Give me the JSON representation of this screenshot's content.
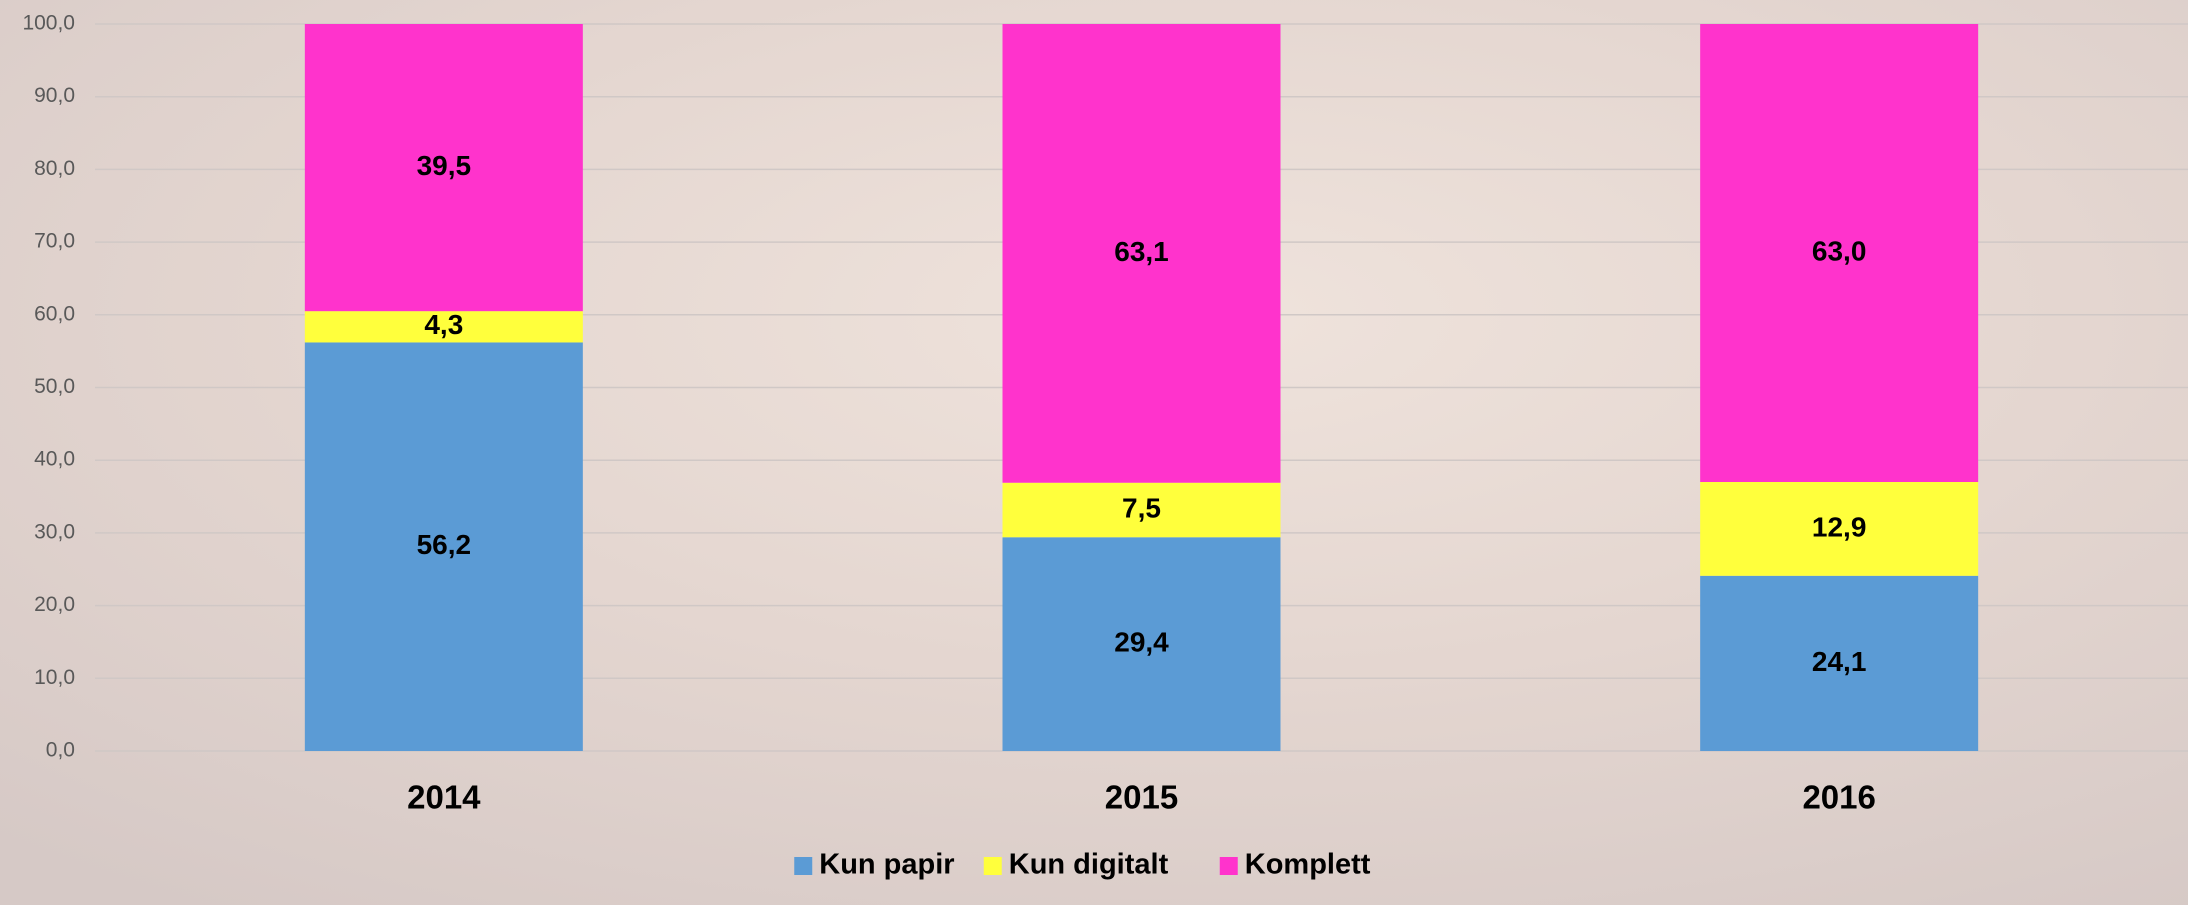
{
  "chart_data": {
    "type": "stacked-bar",
    "categories": [
      "2014",
      "2015",
      "2016"
    ],
    "series": [
      {
        "name": "Kun papir",
        "color": "#5b9bd5",
        "values": [
          56.2,
          29.4,
          24.1
        ],
        "value_labels": [
          "56,2",
          "29,4",
          "24,1"
        ]
      },
      {
        "name": "Kun digitalt",
        "color": "#ffff3c",
        "values": [
          4.3,
          7.5,
          12.9
        ],
        "value_labels": [
          "4,3",
          "7,5",
          "12,9"
        ]
      },
      {
        "name": "Komplett",
        "color": "#ff33cc",
        "values": [
          39.5,
          63.1,
          63.0
        ],
        "value_labels": [
          "39,5",
          "63,1",
          "63,0"
        ]
      }
    ],
    "ylim": [
      0,
      100
    ],
    "yticks": [
      {
        "value": 0,
        "label": "0,0"
      },
      {
        "value": 10,
        "label": "10,0"
      },
      {
        "value": 20,
        "label": "20,0"
      },
      {
        "value": 30,
        "label": "30,0"
      },
      {
        "value": 40,
        "label": "40,0"
      },
      {
        "value": 50,
        "label": "50,0"
      },
      {
        "value": 60,
        "label": "60,0"
      },
      {
        "value": 70,
        "label": "70,0"
      },
      {
        "value": 80,
        "label": "80,0"
      },
      {
        "value": 90,
        "label": "90,0"
      },
      {
        "value": 100,
        "label": "100,0"
      }
    ],
    "grid": true,
    "legend": "bottom"
  }
}
